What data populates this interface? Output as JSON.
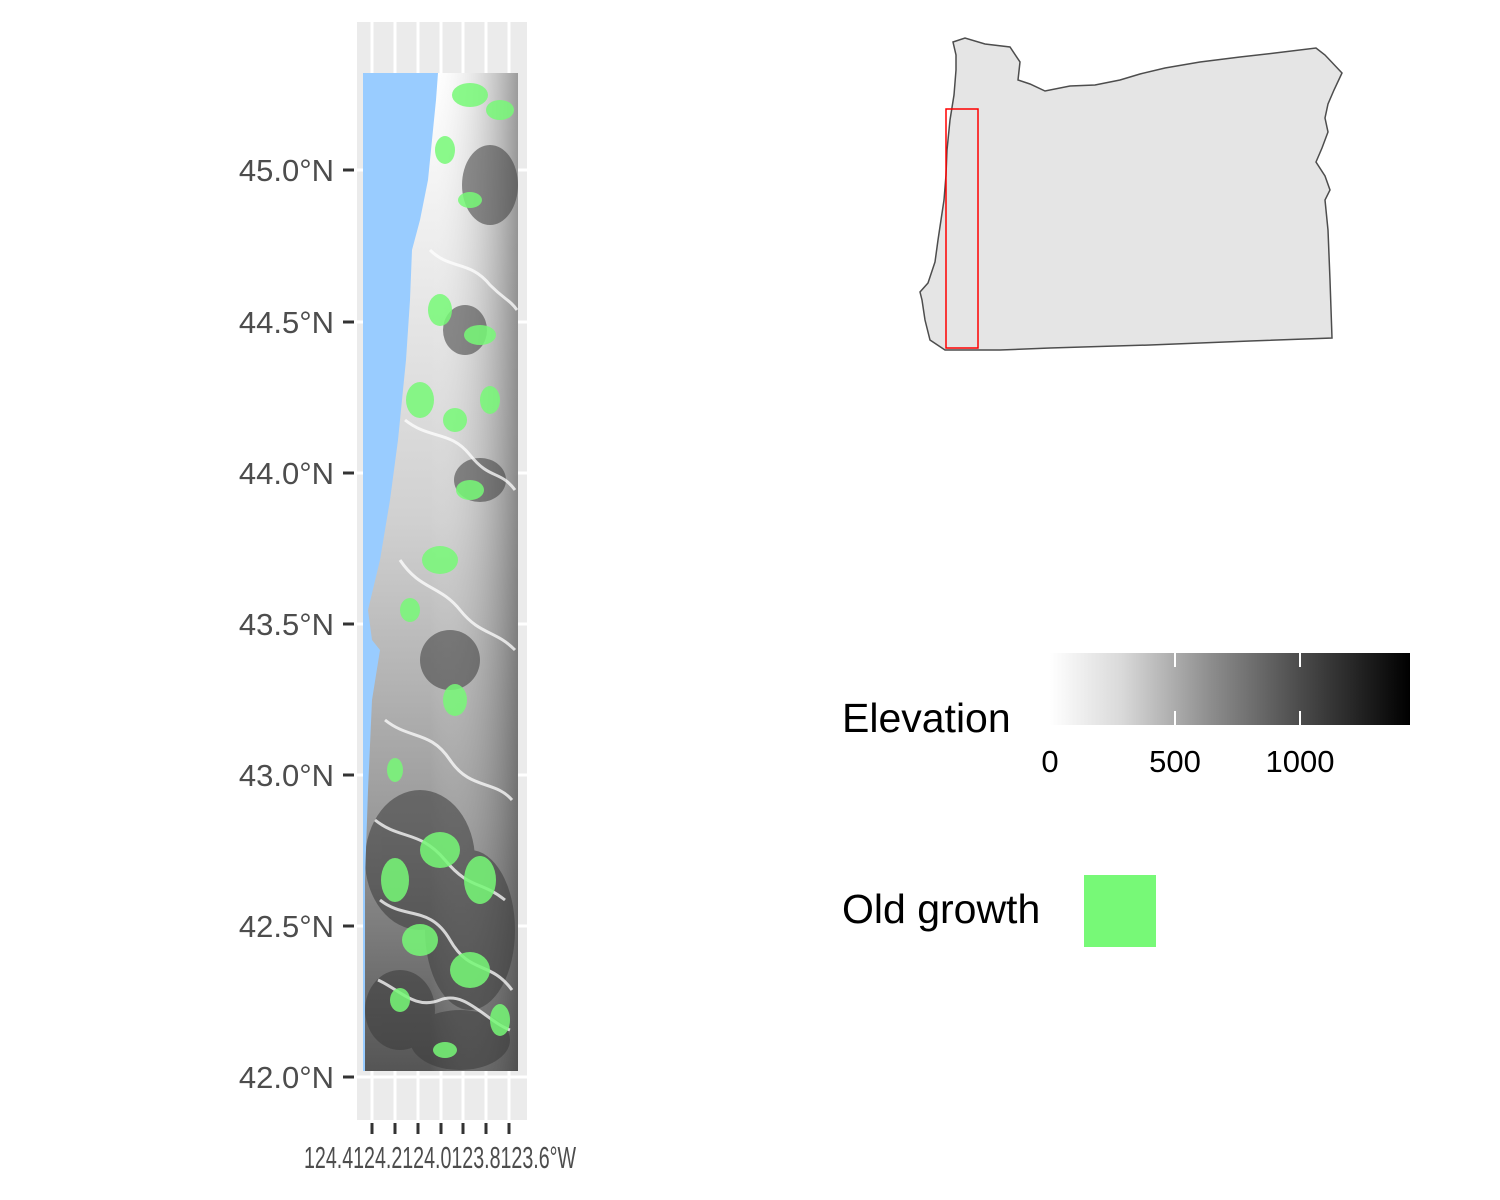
{
  "main_map": {
    "y_axis_labels": [
      "45.0°N",
      "44.5°N",
      "44.0°N",
      "43.5°N",
      "43.0°N",
      "42.5°N",
      "42.0°N"
    ],
    "x_axis_label_text": "124.4124.2124.0123.8123.6°W",
    "water_color": "#99ccff",
    "old_growth_color": "#77f977",
    "panel_background": "#ebebeb"
  },
  "inset_map": {
    "region": "Oregon",
    "fill_color": "#e5e5e5",
    "outline_color": "#4d4d4d",
    "extent_box_color": "#ff0000"
  },
  "legend": {
    "elevation": {
      "title": "Elevation",
      "tick_labels": [
        "0",
        "500",
        "1000"
      ],
      "tick_values": [
        0,
        500,
        1000
      ],
      "range": [
        0,
        1440
      ],
      "colors": [
        "#ffffff",
        "#000000"
      ]
    },
    "old_growth": {
      "title": "Old growth",
      "color": "#77f977"
    }
  }
}
